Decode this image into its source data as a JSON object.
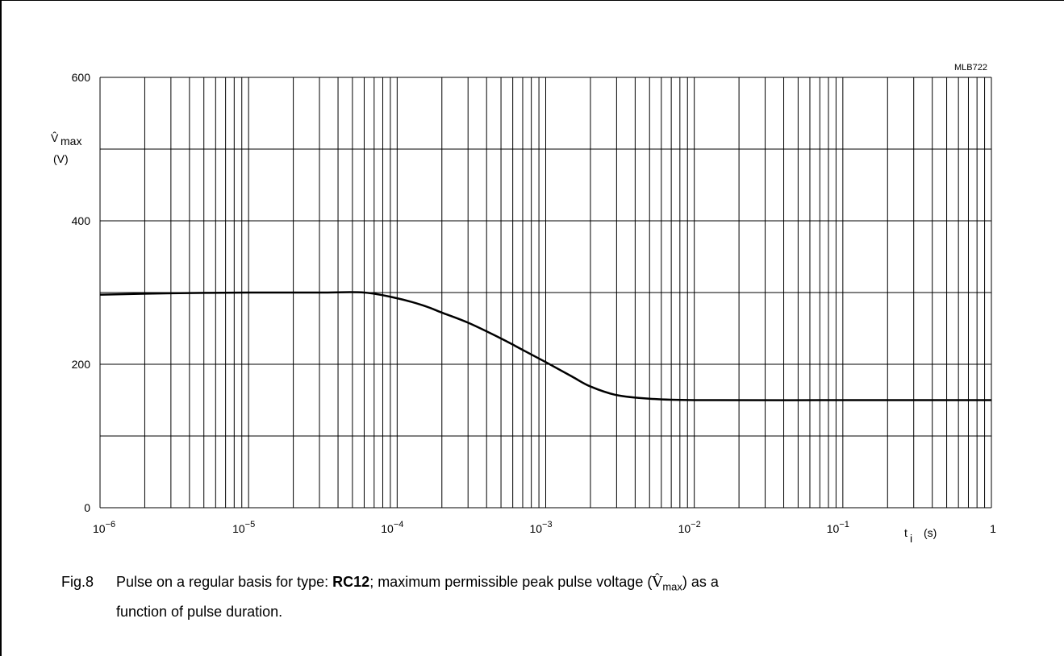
{
  "chart_code": "MLB722",
  "caption": {
    "fig": "Fig.8",
    "text_before_type": "Pulse on a regular basis for type: ",
    "type": "RC12",
    "text_mid": "; maximum permissible peak pulse voltage (",
    "symbol": "V̂",
    "symbol_sub": "max",
    "text_after": ") as a",
    "line2": "function of pulse duration."
  },
  "chart_data": {
    "type": "line",
    "x_scale": "log",
    "y_scale": "linear",
    "xlim": [
      1e-06,
      1
    ],
    "ylim": [
      0,
      600
    ],
    "grid": true,
    "ylabel": {
      "symbol": "V̂",
      "sub": "max",
      "unit": "(V)"
    },
    "xlabel": {
      "symbol": "t",
      "sub": "i",
      "unit": "(s)"
    },
    "y_ticks": [
      "0",
      "200",
      "400",
      "600"
    ],
    "y_tick_values": [
      0,
      200,
      400,
      600
    ],
    "x_ticks": [
      {
        "value": 1e-06,
        "base": "10",
        "exp": "−6"
      },
      {
        "value": 1e-05,
        "base": "10",
        "exp": "−5"
      },
      {
        "value": 0.0001,
        "base": "10",
        "exp": "−4"
      },
      {
        "value": 0.001,
        "base": "10",
        "exp": "−3"
      },
      {
        "value": 0.01,
        "base": "10",
        "exp": "−2"
      },
      {
        "value": 0.1,
        "base": "10",
        "exp": "−1"
      },
      {
        "value": 1,
        "base": "1",
        "exp": ""
      }
    ],
    "series": [
      {
        "x": [
          1e-06,
          3e-06,
          1e-05,
          3e-05,
          6e-05,
          0.0001,
          0.00015,
          0.0002,
          0.0003,
          0.0005,
          0.0007,
          0.001,
          0.0015,
          0.002,
          0.003,
          0.005,
          0.01,
          0.1,
          1
        ],
        "y": [
          297,
          299,
          300,
          300,
          300,
          292,
          282,
          272,
          258,
          236,
          220,
          203,
          183,
          169,
          157,
          152,
          150,
          150,
          150
        ]
      }
    ]
  }
}
